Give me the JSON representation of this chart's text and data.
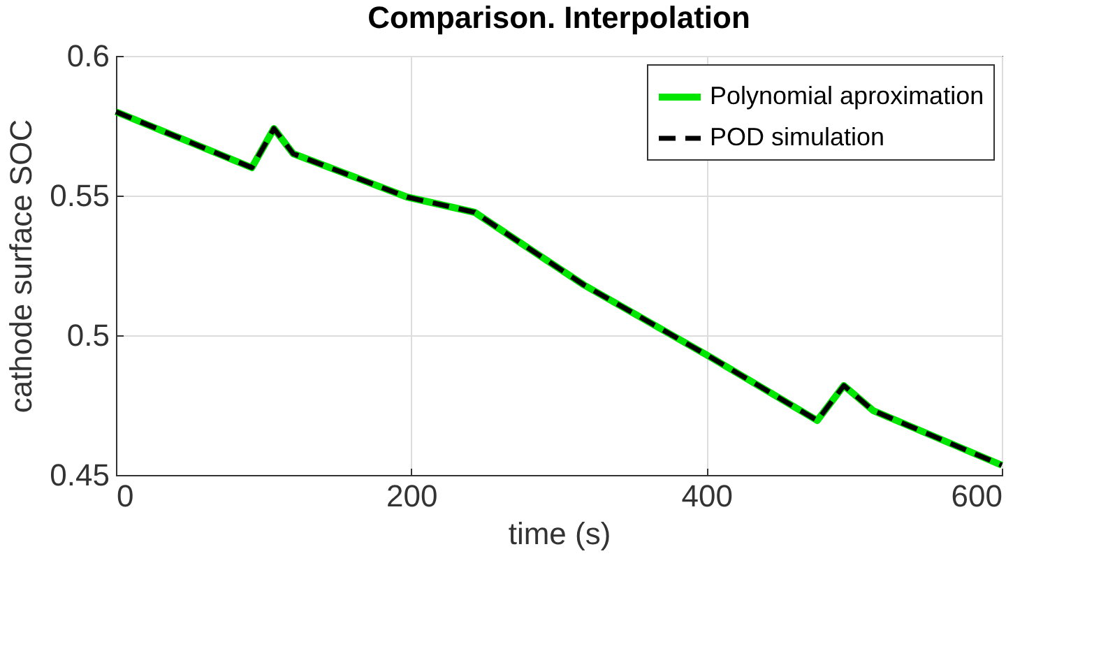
{
  "chart_data": {
    "type": "line",
    "title": "Comparison. Interpolation",
    "xlabel": "time (s)",
    "ylabel": "cathode surface SOC",
    "x": [
      0,
      92,
      107,
      120,
      197,
      243,
      260,
      317,
      400,
      475,
      493,
      513,
      600
    ],
    "series": [
      {
        "name": "Polynomial aproximation",
        "color": "#00e600",
        "line_style": "solid",
        "values": [
          0.58,
          0.56,
          0.574,
          0.565,
          0.5495,
          0.544,
          0.538,
          0.518,
          0.493,
          0.4695,
          0.482,
          0.473,
          0.4535
        ]
      },
      {
        "name": "POD simulation",
        "color": "#000000",
        "line_style": "dashed",
        "values": [
          0.58,
          0.56,
          0.574,
          0.565,
          0.5495,
          0.544,
          0.538,
          0.518,
          0.493,
          0.4695,
          0.482,
          0.473,
          0.4535
        ]
      }
    ],
    "xlim": [
      0,
      600
    ],
    "xticks": [
      0,
      200,
      400,
      600
    ],
    "ylim": [
      0.45,
      0.6
    ],
    "yticks": [
      0.45,
      0.5,
      0.55,
      0.6
    ],
    "grid": true,
    "legend": "top right",
    "marker": "none"
  }
}
